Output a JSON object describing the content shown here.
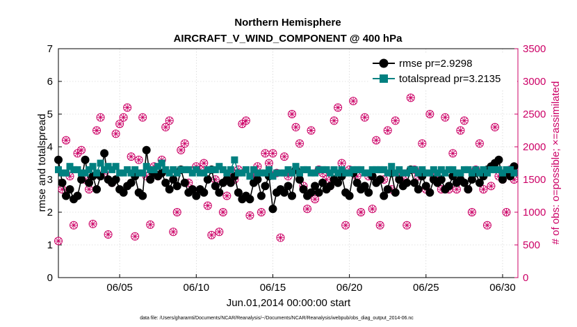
{
  "chart_data": {
    "type": "line",
    "title": "Northern Hemisphere",
    "subtitle": "AIRCRAFT_V_WIND_COMPONENT @ 400 hPa",
    "xlabel": "Jun.01,2014 00:00:00 start",
    "ylabel": "rmse and totalspread",
    "ylabel_right": "# of obs: o=possible; ×=assimilated",
    "footnote": "data file: /Users/gharamti/Documents/NCAR/Reanalysis/~/Documents/NCAR/Reanalysis/webpub/obs_diag_output_2014-06.nc",
    "xlim": [
      1,
      31
    ],
    "ylim": [
      0,
      7
    ],
    "ylim_right": [
      0,
      3500
    ],
    "x_ticks": [
      5,
      10,
      15,
      20,
      25,
      30
    ],
    "x_tick_labels": [
      "06/05",
      "06/10",
      "06/15",
      "06/20",
      "06/25",
      "06/30"
    ],
    "y_ticks": [
      0,
      1,
      2,
      3,
      4,
      5,
      6,
      7
    ],
    "y_tick_labels": [
      "0",
      "1",
      "2",
      "3",
      "4",
      "5",
      "6",
      "7"
    ],
    "y_right_ticks": [
      0,
      500,
      1000,
      1500,
      2000,
      2500,
      3000,
      3500
    ],
    "y_right_tick_labels": [
      "0",
      "500",
      "1000",
      "1500",
      "2000",
      "2500",
      "3000",
      "3500"
    ],
    "grid": true,
    "legend_position": "top-right",
    "colors": {
      "rmse": "#000000",
      "totalspread": "#008080",
      "obs": "#cc0066",
      "right_axis": "#cc0066"
    },
    "series": [
      {
        "name": "rmse pr=2.9298",
        "marker": "circle",
        "values": [
          3.6,
          2.9,
          2.5,
          2.7,
          2.4,
          2.5,
          3.0,
          3.6,
          2.9,
          3.1,
          2.7,
          3.1,
          3.8,
          3.0,
          2.9,
          3.0,
          2.7,
          2.6,
          2.8,
          2.9,
          3.1,
          2.6,
          2.5,
          3.9,
          3.0,
          3.2,
          3.1,
          3.2,
          2.9,
          2.7,
          3.0,
          2.8,
          3.3,
          2.9,
          2.6,
          2.7,
          2.5,
          2.7,
          2.6,
          3.0,
          3.3,
          2.8,
          2.6,
          2.9,
          3.0,
          2.9,
          3.1,
          2.6,
          2.4,
          2.5,
          2.4,
          2.9,
          3.0,
          2.5,
          2.8,
          3.1,
          2.1,
          2.6,
          2.7,
          2.6,
          2.8,
          2.5,
          3.3,
          3.0,
          2.7,
          2.5,
          2.6,
          2.8,
          2.6,
          2.9,
          2.7,
          2.8,
          3.0,
          2.9,
          3.1,
          2.6,
          2.5,
          3.2,
          2.9,
          2.7,
          2.8,
          2.6,
          3.1,
          2.9,
          3.0,
          2.5,
          2.7,
          3.2,
          2.6,
          3.0,
          2.8,
          2.9,
          3.3,
          2.9,
          2.7,
          3.1,
          2.8,
          2.6,
          3.0,
          2.9,
          3.0,
          2.7,
          2.8,
          3.1,
          2.9,
          3.0,
          2.9,
          2.7,
          3.0,
          3.2,
          2.9,
          3.1,
          3.3,
          3.4,
          3.5,
          3.6,
          3.0,
          3.2,
          3.1,
          3.4
        ]
      },
      {
        "name": "totalspread pr=3.2135",
        "marker": "square",
        "values": [
          3.3,
          3.2,
          3.2,
          3.4,
          3.3,
          3.3,
          3.2,
          3.2,
          3.3,
          3.4,
          3.2,
          3.5,
          3.3,
          3.4,
          3.3,
          3.4,
          3.2,
          3.2,
          3.3,
          3.2,
          3.3,
          3.2,
          3.2,
          3.4,
          3.3,
          3.3,
          3.4,
          3.5,
          3.3,
          3.2,
          3.3,
          3.2,
          3.3,
          3.3,
          3.3,
          3.2,
          3.3,
          3.2,
          3.2,
          3.3,
          3.3,
          3.3,
          3.4,
          3.3,
          3.2,
          3.3,
          3.6,
          3.2,
          3.2,
          3.3,
          3.1,
          3.3,
          3.2,
          3.2,
          3.2,
          3.3,
          3.1,
          3.2,
          3.2,
          3.2,
          3.3,
          3.2,
          3.4,
          3.2,
          3.3,
          3.3,
          3.2,
          3.2,
          3.3,
          3.3,
          3.3,
          3.2,
          3.3,
          3.2,
          3.3,
          3.2,
          3.2,
          3.3,
          3.3,
          3.3,
          3.2,
          3.2,
          3.3,
          3.3,
          3.3,
          3.3,
          3.2,
          3.4,
          3.2,
          3.3,
          3.2,
          3.2,
          3.3,
          3.3,
          3.2,
          3.3,
          3.2,
          3.2,
          3.3,
          3.2,
          3.3,
          3.2,
          3.3,
          3.3,
          3.2,
          3.2,
          3.3,
          3.3,
          3.2,
          3.3,
          3.2,
          3.3,
          3.2,
          3.3,
          3.3,
          3.3,
          3.2,
          3.3,
          3.3,
          3.2
        ]
      },
      {
        "name": "possible",
        "axis": "right",
        "marker": "circle-open",
        "values": [
          560,
          1350,
          2100,
          1550,
          800,
          1900,
          1950,
          1500,
          1350,
          820,
          2250,
          2450,
          1600,
          660,
          1450,
          2200,
          2350,
          2450,
          2600,
          1850,
          630,
          1800,
          2450,
          1550,
          810,
          1700,
          1550,
          1800,
          2300,
          2400,
          700,
          1000,
          1950,
          2050,
          1450,
          1350,
          1700,
          1650,
          1750,
          1100,
          650,
          1500,
          700,
          1000,
          1250,
          1550,
          1500,
          1650,
          2350,
          2400,
          950,
          1550,
          1700,
          1000,
          1900,
          1750,
          1900,
          1600,
          610,
          1850,
          1550,
          2500,
          2300,
          2050,
          1400,
          1050,
          2250,
          1200,
          1650,
          1600,
          1500,
          1400,
          2400,
          2600,
          1750,
          800,
          1650,
          2700,
          1550,
          1000,
          2450,
          1550,
          1050,
          2100,
          800,
          1500,
          2250,
          1350,
          2400,
          1550,
          1500,
          800,
          2750,
          1650,
          1550,
          2050,
          1350,
          2500,
          1550,
          1500,
          1350,
          2450,
          1350,
          1900,
          1350,
          2250,
          2400,
          1350,
          1000,
          1650,
          2050,
          1350,
          800,
          1400,
          2300,
          1550,
          1500,
          1000,
          1650,
          1500
        ]
      },
      {
        "name": "assimilated",
        "axis": "right",
        "marker": "x",
        "values": [
          560,
          1350,
          2100,
          1550,
          800,
          1900,
          1950,
          1500,
          1350,
          820,
          2250,
          2450,
          1600,
          660,
          1450,
          2200,
          2350,
          2450,
          2600,
          1850,
          630,
          1800,
          2450,
          1550,
          810,
          1700,
          1550,
          1800,
          2300,
          2400,
          700,
          1000,
          1950,
          2050,
          1450,
          1350,
          1700,
          1650,
          1750,
          1100,
          650,
          1500,
          700,
          1000,
          1250,
          1550,
          1500,
          1650,
          2350,
          2400,
          950,
          1550,
          1700,
          1000,
          1900,
          1750,
          1900,
          1600,
          610,
          1850,
          1550,
          2500,
          2300,
          2050,
          1400,
          1050,
          2250,
          1200,
          1650,
          1600,
          1500,
          1400,
          2400,
          2600,
          1750,
          800,
          1650,
          2700,
          1550,
          1000,
          2450,
          1550,
          1050,
          2100,
          800,
          1500,
          2250,
          1350,
          2400,
          1550,
          1500,
          800,
          2750,
          1650,
          1550,
          2050,
          1350,
          2500,
          1550,
          1500,
          1350,
          2450,
          1350,
          1900,
          1350,
          2250,
          2400,
          1350,
          1000,
          1650,
          2050,
          1350,
          800,
          1400,
          2300,
          1550,
          1500,
          1000,
          1650,
          1500
        ]
      }
    ]
  }
}
